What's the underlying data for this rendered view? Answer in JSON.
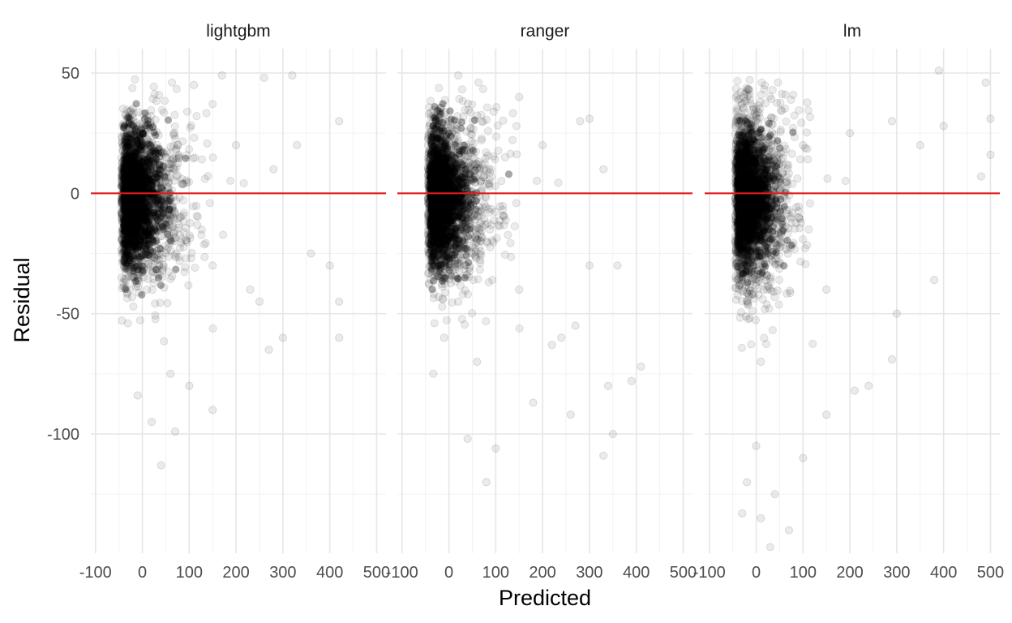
{
  "chart_data": {
    "type": "scatter",
    "facet": true,
    "xlabel": "Predicted",
    "ylabel": "Residual",
    "xlim": [
      -110,
      520
    ],
    "ylim": [
      -150,
      60
    ],
    "x_ticks": [
      -100,
      0,
      100,
      200,
      300,
      400,
      500
    ],
    "y_ticks": [
      50,
      0,
      -50,
      -100
    ],
    "point_color": "#000000",
    "point_alpha": 0.08,
    "reference_line": {
      "y": 0,
      "color": "#e41a1c"
    },
    "grid": true,
    "panels": [
      {
        "name": "lightgbm",
        "points_note_shape": "dense cone",
        "sample_points": [
          [
            -30,
            10
          ],
          [
            -20,
            -20
          ],
          [
            0,
            25
          ],
          [
            10,
            -40
          ],
          [
            30,
            5
          ],
          [
            50,
            15
          ],
          [
            80,
            -10
          ],
          [
            110,
            45
          ],
          [
            150,
            -30
          ],
          [
            200,
            20
          ],
          [
            250,
            -45
          ],
          [
            280,
            10
          ],
          [
            300,
            -60
          ],
          [
            330,
            20
          ],
          [
            360,
            -25
          ],
          [
            400,
            -30
          ],
          [
            420,
            30
          ],
          [
            420,
            -45
          ],
          [
            420,
            -60
          ],
          [
            40,
            -113
          ],
          [
            70,
            -99
          ],
          [
            150,
            -90
          ],
          [
            60,
            -75
          ],
          [
            20,
            -95
          ],
          [
            260,
            48
          ],
          [
            320,
            49
          ],
          [
            170,
            49
          ],
          [
            -10,
            -84
          ],
          [
            100,
            -80
          ],
          [
            230,
            -40
          ],
          [
            270,
            -65
          ]
        ]
      },
      {
        "name": "ranger",
        "points_note_shape": "dense cone",
        "sample_points": [
          [
            -40,
            10
          ],
          [
            -30,
            -30
          ],
          [
            0,
            30
          ],
          [
            20,
            -45
          ],
          [
            40,
            10
          ],
          [
            80,
            -20
          ],
          [
            120,
            15
          ],
          [
            150,
            -40
          ],
          [
            200,
            20
          ],
          [
            240,
            -60
          ],
          [
            280,
            30
          ],
          [
            300,
            -30
          ],
          [
            340,
            -80
          ],
          [
            360,
            -30
          ],
          [
            410,
            -72
          ],
          [
            390,
            -78
          ],
          [
            350,
            -100
          ],
          [
            260,
            -92
          ],
          [
            40,
            -102
          ],
          [
            100,
            -106
          ],
          [
            80,
            -120
          ],
          [
            330,
            -109
          ],
          [
            20,
            49
          ],
          [
            150,
            40
          ],
          [
            300,
            31
          ],
          [
            180,
            -87
          ],
          [
            220,
            -63
          ],
          [
            -10,
            -60
          ],
          [
            60,
            -70
          ],
          [
            270,
            -55
          ],
          [
            330,
            10
          ]
        ]
      },
      {
        "name": "lm",
        "points_note_shape": "dense cone",
        "sample_points": [
          [
            -40,
            10
          ],
          [
            -20,
            -30
          ],
          [
            0,
            35
          ],
          [
            10,
            -70
          ],
          [
            30,
            10
          ],
          [
            60,
            -20
          ],
          [
            100,
            20
          ],
          [
            150,
            -40
          ],
          [
            200,
            25
          ],
          [
            240,
            -80
          ],
          [
            290,
            30
          ],
          [
            300,
            -50
          ],
          [
            350,
            20
          ],
          [
            380,
            -36
          ],
          [
            390,
            51
          ],
          [
            400,
            28
          ],
          [
            490,
            46
          ],
          [
            500,
            31
          ],
          [
            500,
            16
          ],
          [
            480,
            7
          ],
          [
            0,
            -105
          ],
          [
            -20,
            -120
          ],
          [
            10,
            -135
          ],
          [
            40,
            -125
          ],
          [
            70,
            -140
          ],
          [
            -30,
            -133
          ],
          [
            30,
            -147
          ],
          [
            100,
            -110
          ],
          [
            150,
            -92
          ],
          [
            210,
            -82
          ],
          [
            290,
            -69
          ]
        ]
      }
    ]
  }
}
